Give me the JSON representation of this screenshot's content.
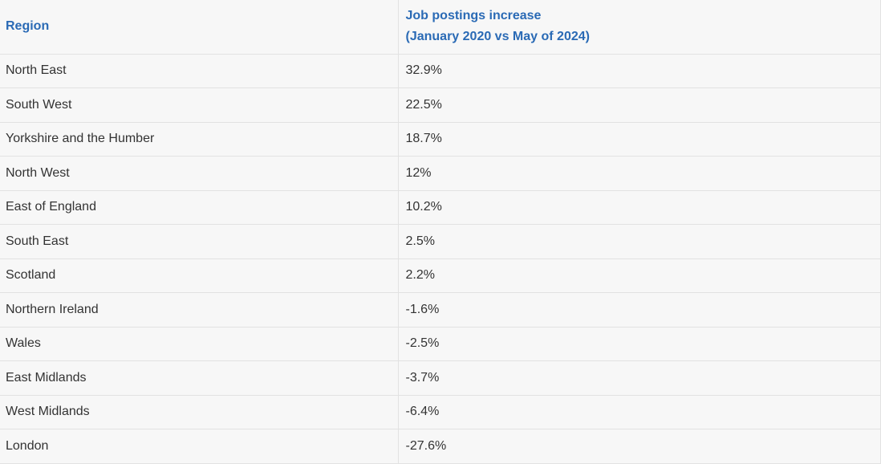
{
  "table": {
    "headers": {
      "region": "Region",
      "increase_line1": "Job postings increase",
      "increase_line2": "(January 2020 vs May of 2024)"
    },
    "rows": [
      {
        "region": "North East",
        "value": "32.9%"
      },
      {
        "region": "South West",
        "value": "22.5%"
      },
      {
        "region": "Yorkshire and the Humber",
        "value": "18.7%"
      },
      {
        "region": "North West",
        "value": "12%"
      },
      {
        "region": "East of England",
        "value": "10.2%"
      },
      {
        "region": "South East",
        "value": "2.5%"
      },
      {
        "region": "Scotland",
        "value": "2.2%"
      },
      {
        "region": "Northern Ireland",
        "value": "-1.6%"
      },
      {
        "region": "Wales",
        "value": "-2.5%"
      },
      {
        "region": "East Midlands",
        "value": "-3.7%"
      },
      {
        "region": "West Midlands",
        "value": "-6.4%"
      },
      {
        "region": "London",
        "value": "-27.6%"
      }
    ]
  },
  "colors": {
    "header_text": "#2a6ab5",
    "body_text": "#333333",
    "background": "#f7f7f7",
    "border": "#e2e2e2"
  }
}
